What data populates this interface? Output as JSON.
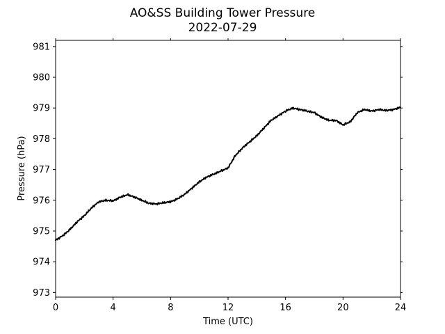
{
  "chart_data": {
    "type": "line",
    "title": "AO&SS Building Tower Pressure",
    "subtitle": "2022-07-29",
    "xlabel": "Time (UTC)",
    "ylabel": "Pressure (hPa)",
    "xlim": [
      0,
      24
    ],
    "ylim": [
      972.85,
      981.2
    ],
    "x_ticks": [
      0,
      4,
      8,
      12,
      16,
      20,
      24
    ],
    "y_ticks": [
      973,
      974,
      975,
      976,
      977,
      978,
      979,
      980,
      981
    ],
    "grid": false,
    "legend": "none",
    "line_color": "#000000",
    "series": [
      {
        "x": [
          0,
          0.5,
          1,
          1.5,
          2,
          2.5,
          3,
          3.5,
          4,
          4.5,
          5,
          5.5,
          6,
          6.5,
          7,
          7.5,
          8,
          8.5,
          9,
          9.5,
          10,
          10.5,
          11,
          11.5,
          12,
          12.5,
          13,
          13.5,
          14,
          14.5,
          15,
          15.5,
          16,
          16.5,
          17,
          17.5,
          18,
          18.5,
          19,
          19.5,
          20,
          20.5,
          21,
          21.5,
          22,
          22.5,
          23,
          23.5,
          24
        ],
        "y": [
          974.7,
          974.85,
          975.05,
          975.3,
          975.5,
          975.75,
          975.95,
          976.0,
          975.98,
          976.1,
          976.18,
          976.1,
          976.0,
          975.9,
          975.88,
          975.92,
          975.95,
          976.05,
          976.2,
          976.4,
          976.6,
          976.75,
          976.85,
          976.95,
          977.05,
          977.45,
          977.7,
          977.9,
          978.1,
          978.35,
          978.6,
          978.75,
          978.9,
          979.0,
          978.95,
          978.9,
          978.85,
          978.7,
          978.6,
          978.6,
          978.45,
          978.55,
          978.85,
          978.95,
          978.9,
          978.95,
          978.92,
          978.95,
          979.02
        ]
      }
    ]
  }
}
